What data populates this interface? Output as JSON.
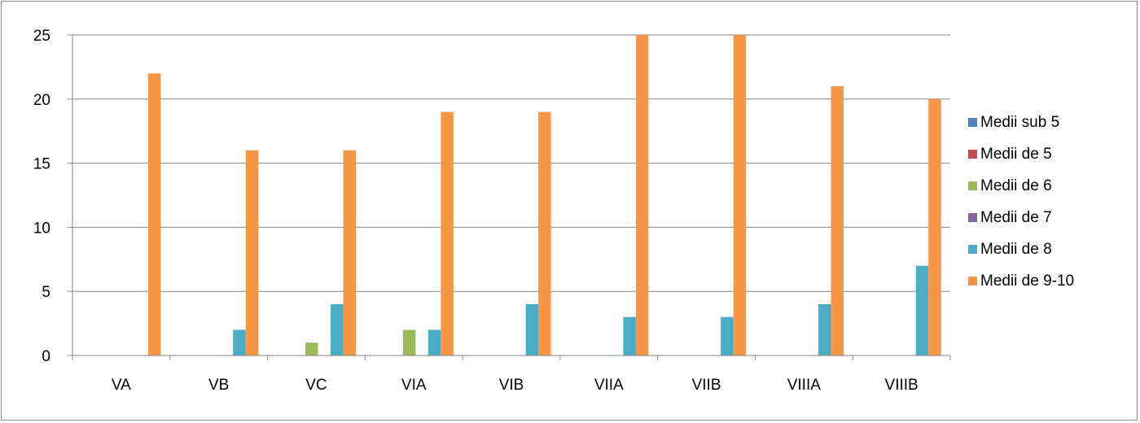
{
  "chart_data": {
    "type": "bar",
    "title": "",
    "xlabel": "",
    "ylabel": "",
    "ylim": [
      0,
      25
    ],
    "yticks": [
      0,
      5,
      10,
      15,
      20,
      25
    ],
    "grid": true,
    "legend_position": "right",
    "categories": [
      "VA",
      "VB",
      "VC",
      "VIA",
      "VIB",
      "VIIA",
      "VIIB",
      "VIIIA",
      "VIIIB"
    ],
    "series": [
      {
        "name": "Medii sub 5",
        "color": "#4F81BD",
        "values": [
          0,
          0,
          0,
          0,
          0,
          0,
          0,
          0,
          0
        ]
      },
      {
        "name": "Medii de 5",
        "color": "#C0504D",
        "values": [
          0,
          0,
          0,
          0,
          0,
          0,
          0,
          0,
          0
        ]
      },
      {
        "name": "Medii de 6",
        "color": "#9BBB59",
        "values": [
          0,
          0,
          1,
          2,
          0,
          0,
          0,
          0,
          0
        ]
      },
      {
        "name": "Medii de 7",
        "color": "#8064A2",
        "values": [
          0,
          0,
          0,
          0,
          0,
          0,
          0,
          0,
          0
        ]
      },
      {
        "name": "Medii de 8",
        "color": "#4BACC6",
        "values": [
          0,
          2,
          4,
          2,
          4,
          3,
          3,
          4,
          7
        ]
      },
      {
        "name": "Medii de 9-10",
        "color": "#F79646",
        "values": [
          22,
          16,
          16,
          19,
          19,
          25,
          25,
          21,
          20
        ]
      }
    ]
  }
}
